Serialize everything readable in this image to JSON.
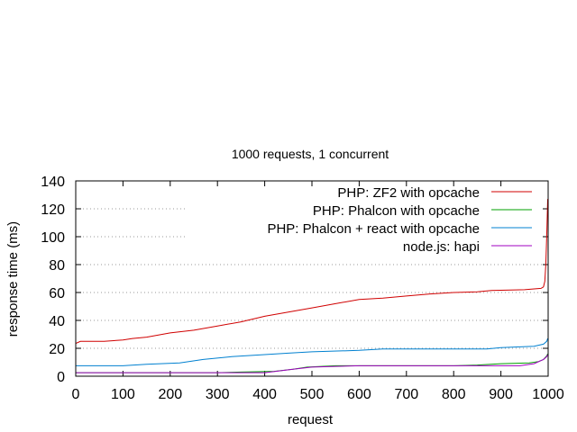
{
  "chart_data": {
    "type": "line",
    "title": "1000 requests, 1 concurrent",
    "xlabel": "request",
    "ylabel": "response time (ms)",
    "xlim": [
      0,
      1000
    ],
    "ylim": [
      0,
      140
    ],
    "xticks": [
      0,
      100,
      200,
      300,
      400,
      500,
      600,
      700,
      800,
      900,
      1000
    ],
    "yticks": [
      0,
      20,
      40,
      60,
      80,
      100,
      120,
      140
    ],
    "grid": "horizontal dotted",
    "legend_position": "top-right",
    "series": [
      {
        "name": "PHP: ZF2 with opcache",
        "color": "#d00000",
        "points": [
          [
            0,
            23.5
          ],
          [
            10,
            25
          ],
          [
            60,
            25
          ],
          [
            100,
            26
          ],
          [
            120,
            27
          ],
          [
            150,
            28
          ],
          [
            200,
            31
          ],
          [
            250,
            33
          ],
          [
            300,
            36
          ],
          [
            350,
            39
          ],
          [
            400,
            43
          ],
          [
            450,
            46
          ],
          [
            500,
            49
          ],
          [
            550,
            52
          ],
          [
            600,
            55
          ],
          [
            650,
            56
          ],
          [
            700,
            57.5
          ],
          [
            750,
            59
          ],
          [
            800,
            60
          ],
          [
            850,
            60.5
          ],
          [
            880,
            61.5
          ],
          [
            950,
            62
          ],
          [
            985,
            63
          ],
          [
            990,
            64
          ],
          [
            993,
            68
          ],
          [
            995,
            80
          ],
          [
            997,
            100
          ],
          [
            999,
            127
          ]
        ]
      },
      {
        "name": "PHP: Phalcon with opcache",
        "color": "#00a000",
        "points": [
          [
            0,
            2.5
          ],
          [
            300,
            2.5
          ],
          [
            350,
            3
          ],
          [
            420,
            3.5
          ],
          [
            460,
            5
          ],
          [
            490,
            6.5
          ],
          [
            550,
            7.5
          ],
          [
            800,
            7.5
          ],
          [
            850,
            8
          ],
          [
            900,
            9
          ],
          [
            960,
            9.5
          ],
          [
            980,
            10.5
          ],
          [
            990,
            12
          ],
          [
            997,
            14.5
          ],
          [
            999,
            16
          ]
        ]
      },
      {
        "name": "PHP: Phalcon + react with opcache",
        "color": "#0080d0",
        "points": [
          [
            0,
            7.5
          ],
          [
            100,
            7.5
          ],
          [
            150,
            8.5
          ],
          [
            220,
            9.5
          ],
          [
            270,
            12
          ],
          [
            330,
            14
          ],
          [
            400,
            15.5
          ],
          [
            450,
            16.5
          ],
          [
            500,
            17.5
          ],
          [
            600,
            18.5
          ],
          [
            650,
            19.5
          ],
          [
            700,
            19.5
          ],
          [
            800,
            19.5
          ],
          [
            870,
            19.5
          ],
          [
            900,
            20.5
          ],
          [
            970,
            21.5
          ],
          [
            990,
            23
          ],
          [
            997,
            25
          ],
          [
            999,
            27
          ]
        ]
      },
      {
        "name": "node.js: hapi",
        "color": "#a000c0",
        "points": [
          [
            0,
            2.5
          ],
          [
            400,
            2.5
          ],
          [
            460,
            5
          ],
          [
            500,
            6.5
          ],
          [
            550,
            7
          ],
          [
            600,
            7.5
          ],
          [
            800,
            7.5
          ],
          [
            870,
            7.5
          ],
          [
            940,
            7.5
          ],
          [
            970,
            9
          ],
          [
            990,
            12
          ],
          [
            997,
            14
          ],
          [
            999,
            15.5
          ]
        ]
      }
    ]
  }
}
